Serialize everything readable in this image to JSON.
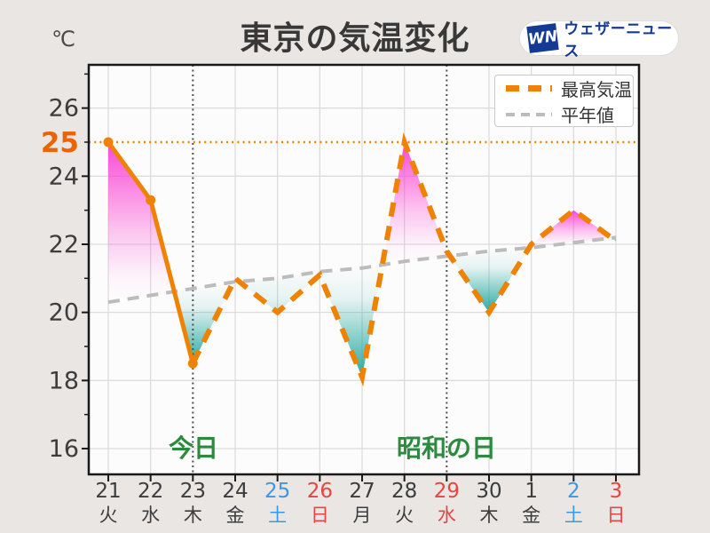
{
  "page": {
    "background": "#e9e6e3"
  },
  "header": {
    "title": "東京の気温変化",
    "unit_label": "℃",
    "logo": {
      "badge": "WN",
      "name": "ウェザーニュース",
      "brand_color": "#143a94"
    }
  },
  "legend": {
    "max_label": "最高気温",
    "normal_label": "平年値"
  },
  "annotations": {
    "today": {
      "label": "今日",
      "day_index": 2
    },
    "holiday": {
      "label": "昭和の日",
      "day_index": 8
    }
  },
  "colors": {
    "line_orange": "#ef8200",
    "highlight_label_orange": "#ed6301",
    "normal_gray": "#bcbcbc",
    "above_normal_pink": "#f93fd3",
    "below_normal_teal": "#14a39a",
    "annotation_green": "#2c8a3e",
    "saturday_blue": "#3b97e8",
    "sunday_red": "#e64540",
    "axis_text": "#3d3d3d",
    "grid": "#dcdcdc",
    "plot_bg": "#fdfcfc",
    "border": "#191919",
    "vline": "#4f4f4f"
  },
  "chart_data": {
    "type": "line",
    "title": "東京の気温変化",
    "ylabel": "℃",
    "ylim": [
      15.1,
      27.3
    ],
    "yticks_labeled": [
      16,
      18,
      20,
      22,
      24,
      26
    ],
    "highlight_value": 25,
    "grid": true,
    "legend_position": "top-right",
    "x": [
      "21",
      "22",
      "23",
      "24",
      "25",
      "26",
      "27",
      "28",
      "29",
      "30",
      "1",
      "2",
      "3"
    ],
    "weekdays": [
      "火",
      "水",
      "木",
      "金",
      "土",
      "日",
      "月",
      "火",
      "水",
      "木",
      "金",
      "土",
      "日"
    ],
    "day_colors": [
      "dark",
      "dark",
      "dark",
      "dark",
      "blue",
      "red",
      "dark",
      "dark",
      "red",
      "dark",
      "dark",
      "blue",
      "red"
    ],
    "series": [
      {
        "name": "最高気温",
        "values": [
          25.0,
          23.3,
          18.5,
          21.0,
          20.0,
          21.1,
          18.1,
          25.0,
          21.8,
          20.0,
          22.0,
          23.0,
          22.1
        ],
        "style": "orange, solid with dot markers through observed_last_index, thick dashed after (forecast)"
      },
      {
        "name": "平年値",
        "values": [
          20.3,
          20.5,
          20.7,
          20.9,
          21.0,
          21.2,
          21.3,
          21.5,
          21.65,
          21.8,
          21.9,
          22.05,
          22.2
        ],
        "style": "gray dashed"
      }
    ],
    "observed_last_index": 2,
    "reference_line": {
      "value": 25,
      "style": "orange dotted horizontal"
    },
    "vline_day_indices": [
      2,
      8
    ],
    "fill_between": "pink gradient where max temp above normal, teal gradient where below"
  }
}
